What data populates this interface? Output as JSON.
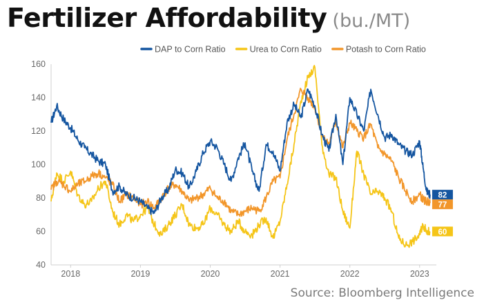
{
  "title": "Fertilizer Affordability",
  "title_unit": "(bu./MT)",
  "source": "Source: Bloomberg Intelligence",
  "chart_data": {
    "type": "line",
    "xlabel": "",
    "ylabel": "",
    "xlim": [
      2017.72,
      2023.2
    ],
    "ylim": [
      40,
      160
    ],
    "yticks": [
      40,
      60,
      80,
      100,
      120,
      140,
      160
    ],
    "xticks": [
      {
        "label": "2018",
        "value": 2018.0
      },
      {
        "label": "2019",
        "value": 2019.0
      },
      {
        "label": "2020",
        "value": 2020.0
      },
      {
        "label": "2021",
        "value": 2021.0
      },
      {
        "label": "2022",
        "value": 2022.0
      },
      {
        "label": "2023",
        "value": 2023.0
      }
    ],
    "grid": false,
    "legend": "top-right",
    "series": [
      {
        "name": "DAP to Corn Ratio",
        "color": "#1455a0",
        "end_label": "82",
        "x": [
          2017.72,
          2017.8,
          2017.9,
          2018.0,
          2018.1,
          2018.2,
          2018.3,
          2018.4,
          2018.5,
          2018.6,
          2018.7,
          2018.8,
          2018.9,
          2019.0,
          2019.1,
          2019.2,
          2019.3,
          2019.4,
          2019.5,
          2019.6,
          2019.7,
          2019.8,
          2019.9,
          2020.0,
          2020.1,
          2020.2,
          2020.3,
          2020.4,
          2020.5,
          2020.6,
          2020.7,
          2020.8,
          2020.9,
          2021.0,
          2021.1,
          2021.2,
          2021.3,
          2021.4,
          2021.5,
          2021.6,
          2021.7,
          2021.8,
          2021.9,
          2022.0,
          2022.1,
          2022.2,
          2022.3,
          2022.4,
          2022.5,
          2022.6,
          2022.7,
          2022.8,
          2022.9,
          2023.0,
          2023.05,
          2023.1,
          2023.15
        ],
        "values": [
          125,
          135,
          127,
          122,
          115,
          110,
          106,
          102,
          100,
          84,
          87,
          82,
          80,
          78,
          74,
          71,
          80,
          85,
          97,
          95,
          86,
          96,
          107,
          114,
          110,
          100,
          90,
          104,
          113,
          96,
          84,
          112,
          108,
          96,
          125,
          136,
          128,
          145,
          135,
          118,
          108,
          130,
          100,
          140,
          130,
          120,
          145,
          130,
          116,
          118,
          112,
          108,
          106,
          114,
          98,
          84,
          82
        ]
      },
      {
        "name": "Urea to Corn Ratio",
        "color": "#f5c518",
        "end_label": "60",
        "x": [
          2017.72,
          2017.8,
          2017.9,
          2018.0,
          2018.1,
          2018.2,
          2018.3,
          2018.4,
          2018.5,
          2018.6,
          2018.7,
          2018.8,
          2018.9,
          2019.0,
          2019.1,
          2019.2,
          2019.3,
          2019.4,
          2019.5,
          2019.6,
          2019.7,
          2019.8,
          2019.9,
          2020.0,
          2020.1,
          2020.2,
          2020.3,
          2020.4,
          2020.5,
          2020.6,
          2020.7,
          2020.8,
          2020.9,
          2021.0,
          2021.1,
          2021.2,
          2021.3,
          2021.4,
          2021.5,
          2021.6,
          2021.7,
          2021.8,
          2021.9,
          2022.0,
          2022.1,
          2022.2,
          2022.3,
          2022.4,
          2022.5,
          2022.6,
          2022.7,
          2022.8,
          2022.9,
          2023.0,
          2023.05,
          2023.1,
          2023.15
        ],
        "values": [
          78,
          95,
          90,
          96,
          82,
          76,
          78,
          86,
          90,
          72,
          64,
          70,
          66,
          70,
          74,
          64,
          58,
          64,
          70,
          76,
          64,
          62,
          64,
          74,
          70,
          64,
          60,
          66,
          60,
          58,
          64,
          68,
          56,
          66,
          88,
          112,
          138,
          152,
          158,
          112,
          94,
          92,
          72,
          62,
          108,
          94,
          82,
          84,
          80,
          72,
          56,
          52,
          54,
          58,
          64,
          60,
          60
        ]
      },
      {
        "name": "Potash to Corn Ratio",
        "color": "#f2962a",
        "end_label": "77",
        "x": [
          2017.72,
          2017.8,
          2017.9,
          2018.0,
          2018.1,
          2018.2,
          2018.3,
          2018.4,
          2018.5,
          2018.6,
          2018.7,
          2018.8,
          2018.9,
          2019.0,
          2019.1,
          2019.2,
          2019.3,
          2019.4,
          2019.5,
          2019.6,
          2019.7,
          2019.8,
          2019.9,
          2020.0,
          2020.1,
          2020.2,
          2020.3,
          2020.4,
          2020.5,
          2020.6,
          2020.7,
          2020.8,
          2020.9,
          2021.0,
          2021.1,
          2021.2,
          2021.3,
          2021.4,
          2021.5,
          2021.6,
          2021.7,
          2021.8,
          2021.9,
          2022.0,
          2022.1,
          2022.2,
          2022.3,
          2022.4,
          2022.5,
          2022.6,
          2022.7,
          2022.8,
          2022.9,
          2023.0,
          2023.05,
          2023.1,
          2023.15
        ],
        "values": [
          85,
          90,
          88,
          84,
          88,
          90,
          93,
          95,
          92,
          88,
          78,
          82,
          80,
          76,
          78,
          74,
          80,
          86,
          88,
          84,
          78,
          80,
          82,
          86,
          80,
          78,
          72,
          70,
          72,
          74,
          72,
          80,
          90,
          92,
          115,
          130,
          145,
          140,
          134,
          118,
          112,
          126,
          110,
          125,
          120,
          116,
          124,
          110,
          106,
          102,
          92,
          84,
          78,
          82,
          79,
          78,
          77
        ]
      }
    ]
  }
}
